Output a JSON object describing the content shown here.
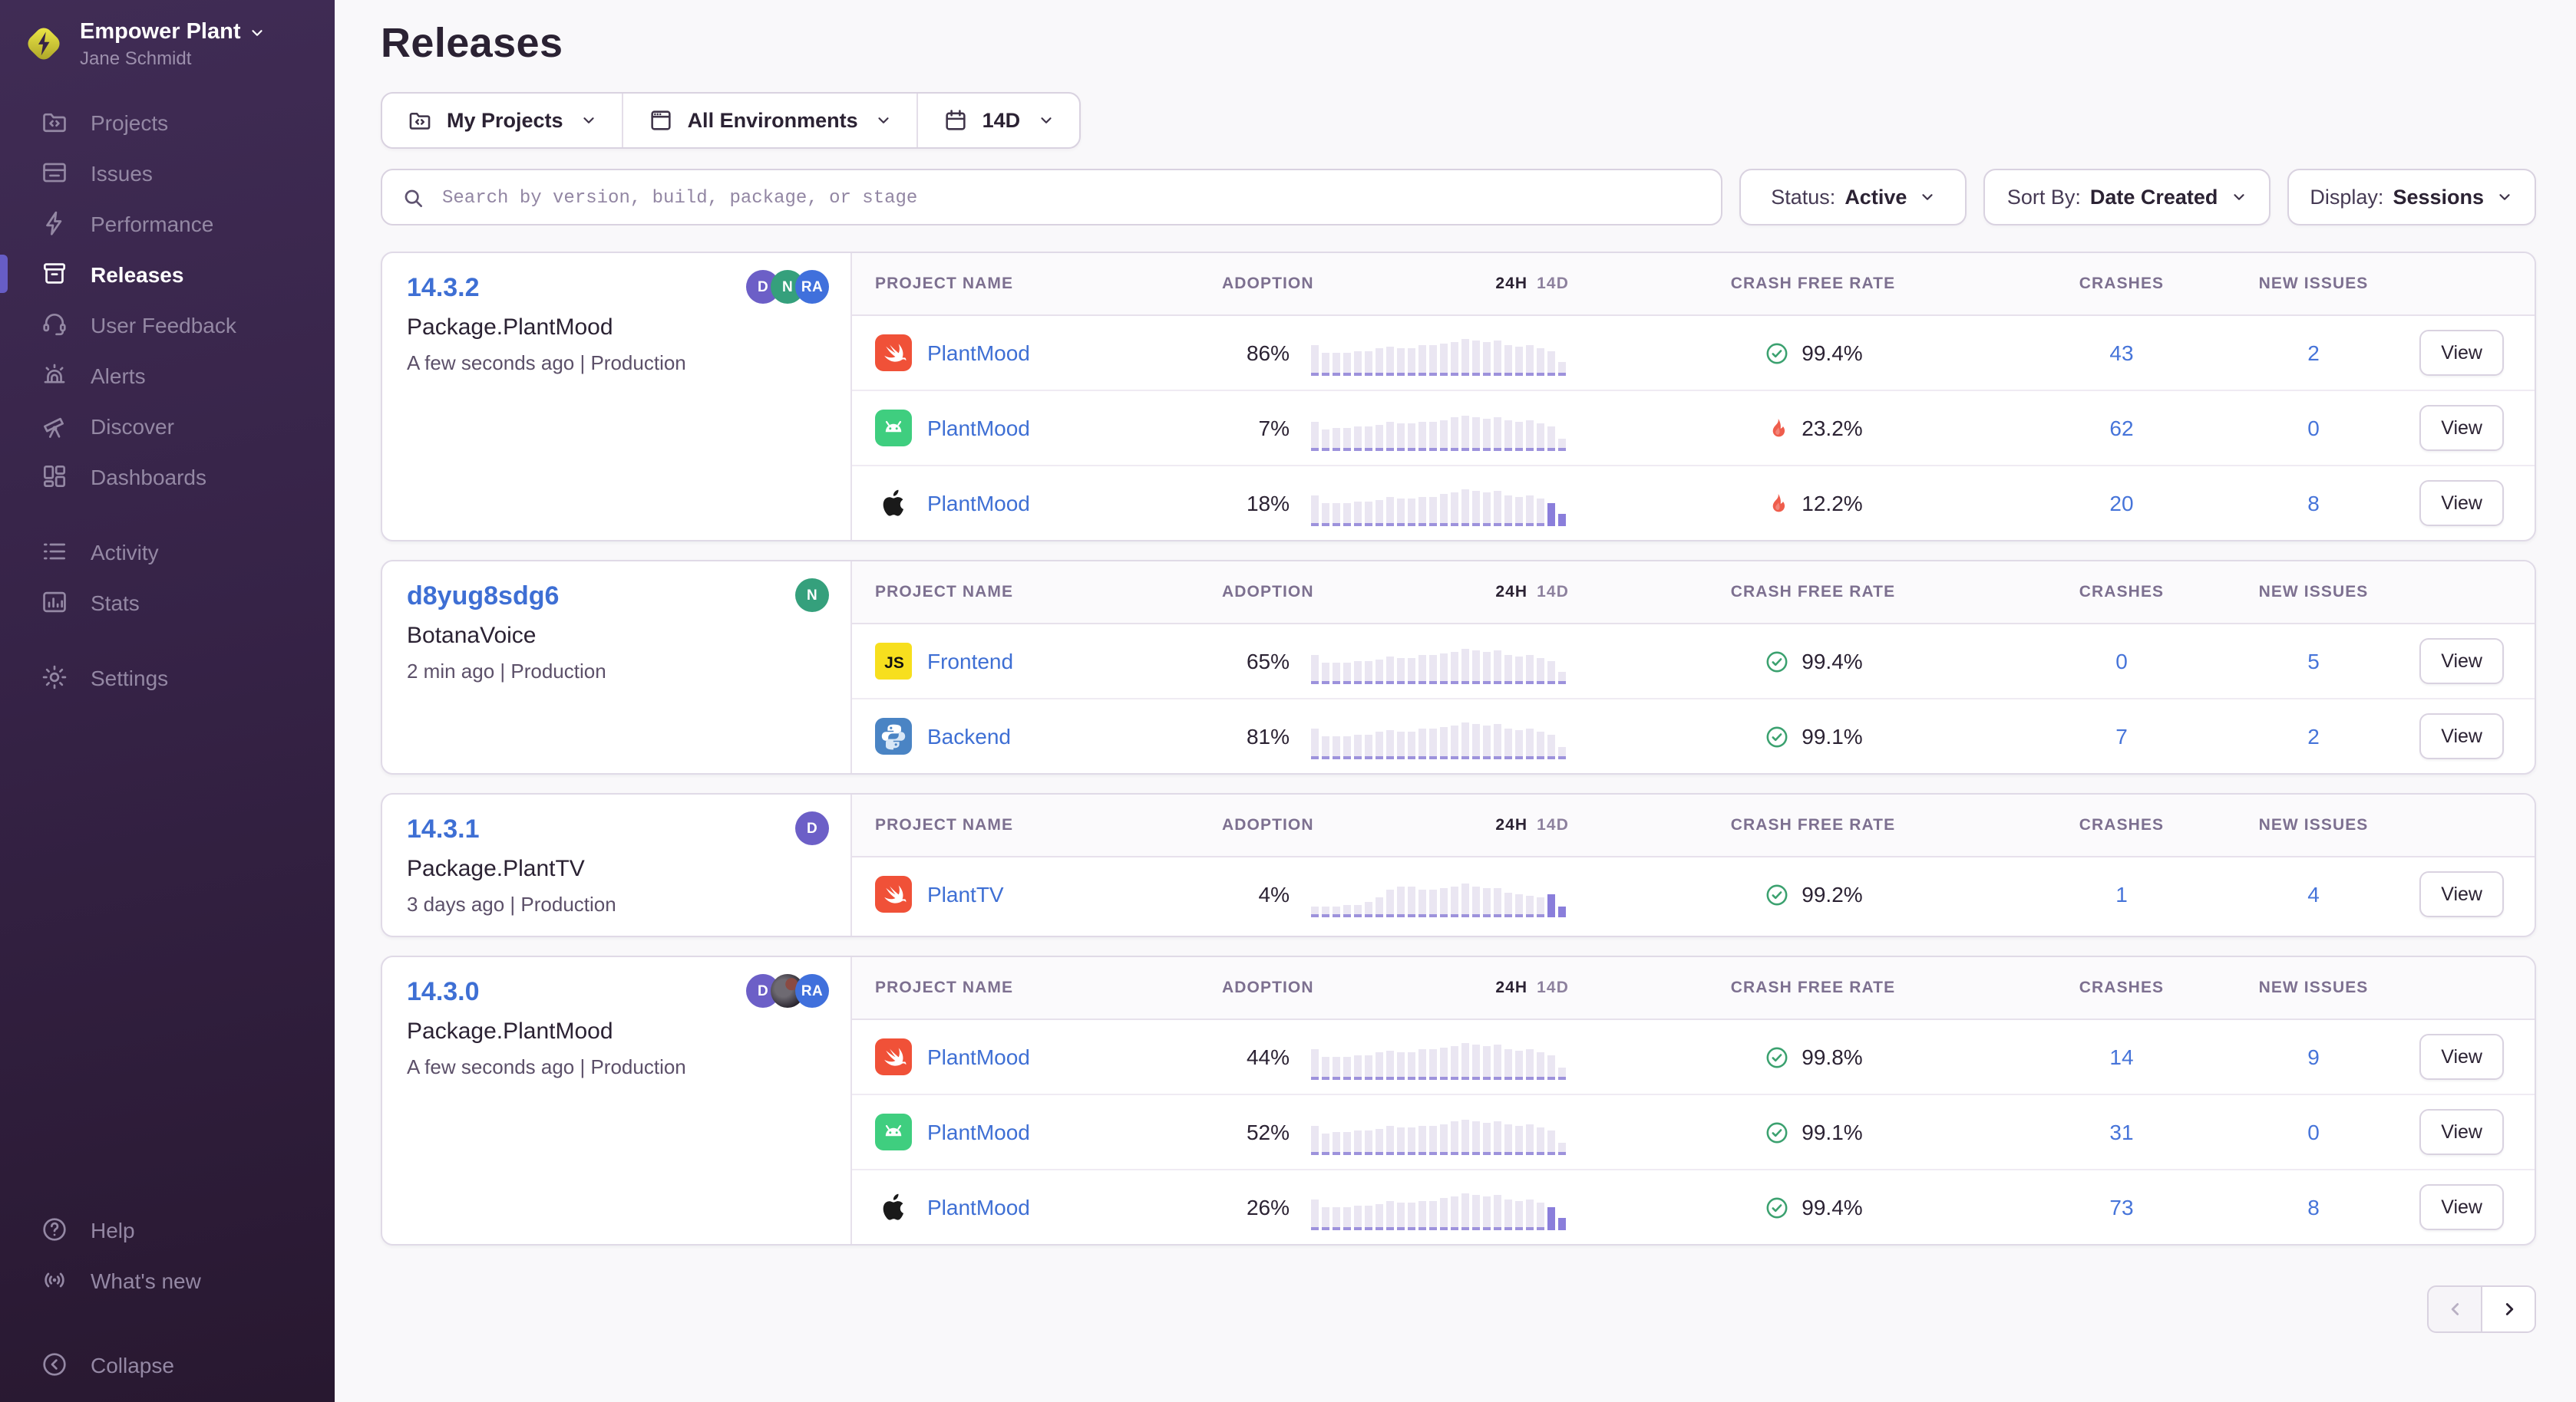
{
  "sidebar": {
    "org_name": "Empower Plant",
    "user_name": "Jane Schmidt",
    "groups": [
      [
        {
          "id": "projects",
          "label": "Projects",
          "active": false
        },
        {
          "id": "issues",
          "label": "Issues",
          "active": false
        },
        {
          "id": "performance",
          "label": "Performance",
          "active": false
        },
        {
          "id": "releases",
          "label": "Releases",
          "active": true
        },
        {
          "id": "user-feedback",
          "label": "User Feedback",
          "active": false
        },
        {
          "id": "alerts",
          "label": "Alerts",
          "active": false
        },
        {
          "id": "discover",
          "label": "Discover",
          "active": false
        },
        {
          "id": "dashboards",
          "label": "Dashboards",
          "active": false
        }
      ],
      [
        {
          "id": "activity",
          "label": "Activity",
          "active": false
        },
        {
          "id": "stats",
          "label": "Stats",
          "active": false
        }
      ],
      [
        {
          "id": "settings",
          "label": "Settings",
          "active": false
        }
      ]
    ],
    "footer": [
      {
        "id": "help",
        "label": "Help"
      },
      {
        "id": "whats-new",
        "label": "What's new"
      }
    ],
    "collapse_label": "Collapse"
  },
  "header": {
    "title": "Releases"
  },
  "filters": {
    "project_label": "My Projects",
    "environment_label": "All Environments",
    "date_label": "14D",
    "search_placeholder": "Search by version, build, package, or stage",
    "status_label": "Status:",
    "status_value": "Active",
    "sort_label": "Sort By:",
    "sort_value": "Date Created",
    "display_label": "Display:",
    "display_value": "Sessions"
  },
  "table": {
    "col_project": "PROJECT NAME",
    "col_adoption": "ADOPTION",
    "col_24h": "24H",
    "col_14d": "14D",
    "col_crash_free": "CRASH FREE RATE",
    "col_crashes": "CRASHES",
    "col_new_issues": "NEW ISSUES",
    "view_label": "View"
  },
  "releases": [
    {
      "version": "14.3.2",
      "package": "Package.PlantMood",
      "meta": "A few seconds ago | Production",
      "avatars": [
        {
          "initials": "D",
          "color": "#6c5fc7"
        },
        {
          "initials": "N",
          "color": "#35a07c"
        },
        {
          "initials": "RA",
          "color": "#4070dc"
        }
      ],
      "rows": [
        {
          "platform": "swift",
          "project": "PlantMood",
          "adoption": "86%",
          "crash_free": "99.4%",
          "crash_ok": true,
          "crashes": "43",
          "new_issues": "2",
          "spark": {
            "bars": [
              64,
              44,
              46,
              46,
              50,
              50,
              54,
              60,
              57,
              57,
              62,
              62,
              66,
              72,
              78,
              74,
              70,
              74,
              64,
              60,
              64,
              56,
              50,
              22
            ],
            "active_tail": 0
          }
        },
        {
          "platform": "android",
          "project": "PlantMood",
          "adoption": "7%",
          "crash_free": "23.2%",
          "crash_ok": false,
          "crashes": "62",
          "new_issues": "0",
          "spark": {
            "bars": [
              60,
              42,
              44,
              44,
              48,
              48,
              52,
              58,
              55,
              55,
              60,
              60,
              64,
              70,
              76,
              72,
              68,
              72,
              62,
              58,
              62,
              54,
              48,
              20
            ],
            "active_tail": 0
          }
        },
        {
          "platform": "apple",
          "project": "PlantMood",
          "adoption": "18%",
          "crash_free": "12.2%",
          "crash_ok": false,
          "crashes": "20",
          "new_issues": "8",
          "spark": {
            "bars": [
              62,
              43,
              45,
              45,
              49,
              49,
              53,
              59,
              56,
              56,
              61,
              61,
              65,
              71,
              77,
              73,
              69,
              73,
              63,
              59,
              63,
              55,
              46,
              18
            ],
            "active_tail": 2
          }
        }
      ]
    },
    {
      "version": "d8yug8sdg6",
      "package": "BotanaVoice",
      "meta": "2 min ago | Production",
      "avatars": [
        {
          "initials": "N",
          "color": "#35a07c"
        }
      ],
      "rows": [
        {
          "platform": "javascript",
          "project": "Frontend",
          "adoption": "65%",
          "crash_free": "99.4%",
          "crash_ok": true,
          "crashes": "0",
          "new_issues": "5",
          "spark": {
            "bars": [
              58,
              40,
              42,
              42,
              46,
              46,
              50,
              56,
              53,
              53,
              58,
              58,
              62,
              68,
              74,
              70,
              66,
              70,
              60,
              56,
              60,
              52,
              46,
              18
            ],
            "active_tail": 0
          }
        },
        {
          "platform": "python",
          "project": "Backend",
          "adoption": "81%",
          "crash_free": "99.1%",
          "crash_ok": true,
          "crashes": "7",
          "new_issues": "2",
          "spark": {
            "bars": [
              62,
              44,
              46,
              46,
              50,
              50,
              54,
              60,
              57,
              57,
              62,
              62,
              66,
              72,
              78,
              74,
              70,
              74,
              64,
              60,
              64,
              56,
              50,
              20
            ],
            "active_tail": 0
          }
        }
      ]
    },
    {
      "version": "14.3.1",
      "package": "Package.PlantTV",
      "meta": "3 days ago | Production",
      "avatars": [
        {
          "initials": "D",
          "color": "#6c5fc7"
        }
      ],
      "rows": [
        {
          "platform": "swift",
          "project": "PlantTV",
          "adoption": "4%",
          "crash_free": "99.2%",
          "crash_ok": true,
          "crashes": "1",
          "new_issues": "4",
          "spark": {
            "bars": [
              16,
              16,
              16,
              18,
              20,
              26,
              36,
              54,
              64,
              64,
              56,
              56,
              60,
              64,
              70,
              62,
              58,
              58,
              50,
              44,
              40,
              36,
              44,
              16
            ],
            "active_tail": 2
          }
        }
      ]
    },
    {
      "version": "14.3.0",
      "package": "Package.PlantMood",
      "meta": "A few seconds ago | Production",
      "avatars": [
        {
          "initials": "D",
          "color": "#6c5fc7"
        },
        {
          "initials": "",
          "color": "photo"
        },
        {
          "initials": "RA",
          "color": "#4070dc"
        }
      ],
      "rows": [
        {
          "platform": "swift",
          "project": "PlantMood",
          "adoption": "44%",
          "crash_free": "99.8%",
          "crash_ok": true,
          "crashes": "14",
          "new_issues": "9",
          "spark": {
            "bars": [
              64,
              44,
              46,
              46,
              50,
              50,
              54,
              60,
              57,
              57,
              62,
              62,
              66,
              72,
              78,
              74,
              70,
              74,
              64,
              60,
              64,
              56,
              50,
              20
            ],
            "active_tail": 0
          }
        },
        {
          "platform": "android",
          "project": "PlantMood",
          "adoption": "52%",
          "crash_free": "99.1%",
          "crash_ok": true,
          "crashes": "31",
          "new_issues": "0",
          "spark": {
            "bars": [
              60,
              42,
              44,
              44,
              48,
              48,
              52,
              58,
              55,
              55,
              60,
              60,
              64,
              70,
              76,
              72,
              68,
              72,
              62,
              58,
              62,
              54,
              48,
              18
            ],
            "active_tail": 0
          }
        },
        {
          "platform": "apple",
          "project": "PlantMood",
          "adoption": "26%",
          "crash_free": "99.4%",
          "crash_ok": true,
          "crashes": "73",
          "new_issues": "8",
          "spark": {
            "bars": [
              62,
              43,
              45,
              45,
              49,
              49,
              53,
              59,
              56,
              56,
              61,
              61,
              65,
              71,
              77,
              73,
              69,
              73,
              63,
              59,
              63,
              55,
              46,
              18
            ],
            "active_tail": 2
          }
        }
      ]
    }
  ],
  "pagination": {
    "previous_enabled": false,
    "next_enabled": true
  },
  "colors": {
    "accent_purple": "#675dc6",
    "link_blue": "#3e6fd4",
    "count_blue": "#4674d9",
    "ok_green": "#3ba16f",
    "alert_red": "#ef5d4c",
    "spark_light": "#eae6f2",
    "spark_purple": "#8a7edb"
  }
}
